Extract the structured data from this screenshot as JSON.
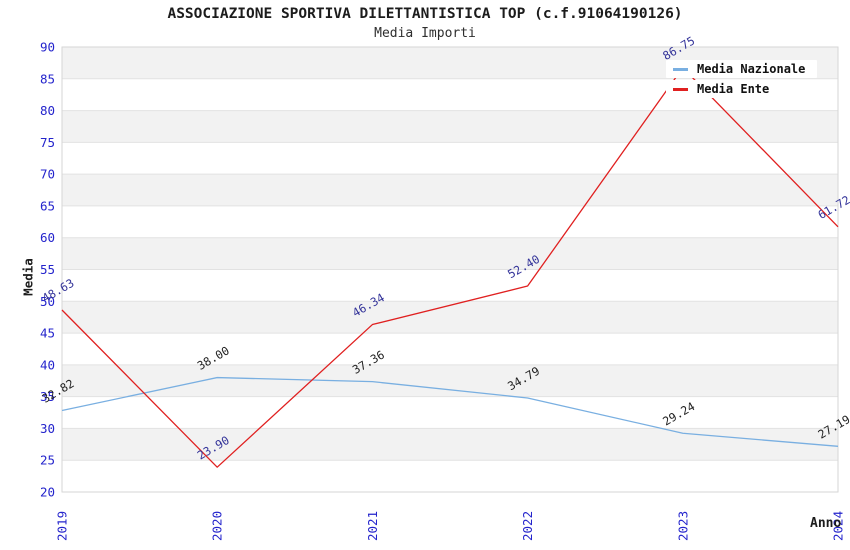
{
  "chart_data": {
    "type": "line",
    "title": "ASSOCIAZIONE SPORTIVA DILETTANTISTICA TOP (c.f.91064190126)",
    "subtitle": "Media Importi",
    "xlabel": "Anno",
    "ylabel": "Media",
    "x": [
      "2019",
      "2020",
      "2021",
      "2022",
      "2023",
      "2024"
    ],
    "ylim": [
      20,
      90
    ],
    "ytick_step": 5,
    "grid": true,
    "legend_position": "top-right",
    "band_colors": [
      "#f2f2f2",
      "#ffffff"
    ],
    "gridline_color": "#e2e2e2",
    "plot_border_color": "#d6d6d6",
    "axis_tick_color": "#2424cc",
    "series": [
      {
        "name": "Media Nazionale",
        "color": "#79afe1",
        "label_color": "#1f1f1f",
        "values": [
          32.82,
          38.0,
          37.36,
          34.79,
          29.24,
          27.19
        ]
      },
      {
        "name": "Media Ente",
        "color": "#e02020",
        "label_color": "#333399",
        "values": [
          48.63,
          23.9,
          46.34,
          52.4,
          86.75,
          61.72
        ]
      }
    ]
  }
}
